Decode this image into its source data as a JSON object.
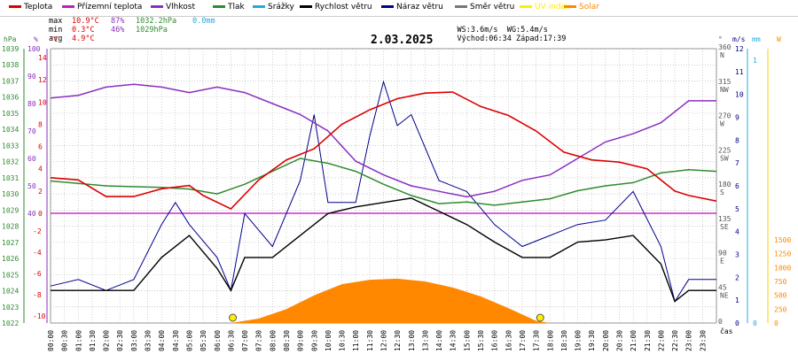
{
  "legend": [
    {
      "label": "Teplota",
      "color": "#dd0000"
    },
    {
      "label": "Přízemní teplota",
      "color": "#bb22bb"
    },
    {
      "label": "Vlhkost",
      "color": "#8a2ebf"
    },
    {
      "label": "Tlak",
      "color": "#2e8b2e"
    },
    {
      "label": "Srážky",
      "color": "#22aadd"
    },
    {
      "label": "Rychlost větru",
      "color": "#000000"
    },
    {
      "label": "Náraz větru",
      "color": "#00008b"
    },
    {
      "label": "Směr větru",
      "color": "#777777"
    },
    {
      "label": "UV index",
      "color": "#ffee00"
    },
    {
      "label": "Solar",
      "color": "#ff8800"
    }
  ],
  "stats": {
    "rows": [
      {
        "label": "max",
        "temp": "10.9°C",
        "hum": "87%",
        "press": "1032.2hPa",
        "rain": "0.0mm"
      },
      {
        "label": "min",
        "temp": "0.3°C",
        "hum": "46%",
        "press": "1029hPa",
        "rain": ""
      },
      {
        "label": "avg",
        "temp": "4.9°C",
        "hum": "",
        "press": "",
        "rain": ""
      }
    ],
    "ws": "WS:3.6m/s",
    "wg": "WG:5.4m/s",
    "sunrise": "Východ:06:34",
    "sunset": "Západ:17:39"
  },
  "title": "2.03.2025",
  "axes": {
    "left_units": [
      "hPa",
      "%",
      "°C"
    ],
    "right_units": [
      "°",
      "m/s",
      "mm",
      "W"
    ],
    "hpa_ticks": [
      "1039",
      "1038",
      "1037",
      "1036",
      "1035",
      "1034",
      "1033",
      "1032",
      "1031",
      "1030",
      "1029",
      "1028",
      "1027",
      "1026",
      "1025",
      "1024",
      "1023",
      "1022"
    ],
    "pct_ticks": [
      "100",
      "90",
      "80",
      "70",
      "60",
      "50",
      "40"
    ],
    "c_ticks_top": [
      "14",
      "12",
      "10",
      "8",
      "6",
      "4",
      "2",
      "0"
    ],
    "c_ticks_bottom": [
      "-2",
      "-4",
      "-6",
      "-8",
      "-10"
    ],
    "deg_ticks": [
      {
        "deg": "360",
        "dir": "N"
      },
      {
        "deg": "315",
        "dir": "NW"
      },
      {
        "deg": "270",
        "dir": "W"
      },
      {
        "deg": "225",
        "dir": "SW"
      },
      {
        "deg": "180",
        "dir": "S"
      },
      {
        "deg": "135",
        "dir": "SE"
      },
      {
        "deg": "90",
        "dir": "E"
      },
      {
        "deg": "45",
        "dir": "NE"
      },
      {
        "deg": "0",
        "dir": ""
      }
    ],
    "ms_ticks": [
      "12",
      "11",
      "10",
      "9",
      "8",
      "7",
      "6",
      "5",
      "4",
      "3",
      "2",
      "1",
      "0"
    ],
    "mm_ticks": [
      "1",
      "0"
    ],
    "w_ticks": [
      "1500",
      "1250",
      "1000",
      "750",
      "500",
      "250",
      "0"
    ],
    "x_ticks": [
      "00:00",
      "00:30",
      "01:00",
      "01:30",
      "02:00",
      "02:30",
      "03:00",
      "03:30",
      "04:00",
      "04:30",
      "05:00",
      "05:30",
      "06:00",
      "06:30",
      "07:00",
      "07:30",
      "08:00",
      "08:30",
      "09:00",
      "09:30",
      "10:00",
      "10:30",
      "11:00",
      "11:30",
      "12:00",
      "12:30",
      "13:00",
      "13:30",
      "14:00",
      "14:30",
      "15:00",
      "15:30",
      "16:00",
      "16:30",
      "17:00",
      "17:30",
      "18:00",
      "18:30",
      "19:00",
      "19:30",
      "20:00",
      "20:30",
      "21:00",
      "21:30",
      "22:00",
      "22:30",
      "23:00",
      "23:30"
    ],
    "x_unit": "čas"
  },
  "chart_data": {
    "type": "line",
    "title": "2.03.2025",
    "x_range_hours": [
      0,
      24
    ],
    "series": [
      {
        "name": "Teplota",
        "unit": "°C",
        "points": [
          [
            0,
            3.2
          ],
          [
            1,
            3
          ],
          [
            2,
            1.5
          ],
          [
            3,
            1.5
          ],
          [
            4,
            2.2
          ],
          [
            5,
            2.5
          ],
          [
            5.5,
            1.6
          ],
          [
            6.5,
            0.4
          ],
          [
            7.5,
            3
          ],
          [
            8.5,
            4.8
          ],
          [
            9.5,
            5.8
          ],
          [
            10.5,
            8
          ],
          [
            11.5,
            9.3
          ],
          [
            12.5,
            10.3
          ],
          [
            13.5,
            10.8
          ],
          [
            14.5,
            10.9
          ],
          [
            15.5,
            9.6
          ],
          [
            16.5,
            8.8
          ],
          [
            17.5,
            7.4
          ],
          [
            18.5,
            5.5
          ],
          [
            19.5,
            4.8
          ],
          [
            20.5,
            4.6
          ],
          [
            21.5,
            4
          ],
          [
            22.5,
            2
          ],
          [
            23,
            1.6
          ],
          [
            24,
            1.1
          ]
        ]
      },
      {
        "name": "Vlhkost",
        "unit": "%",
        "points": [
          [
            0,
            82
          ],
          [
            1,
            83
          ],
          [
            2,
            86
          ],
          [
            3,
            87
          ],
          [
            4,
            86
          ],
          [
            5,
            84
          ],
          [
            6,
            86
          ],
          [
            7,
            84
          ],
          [
            8,
            80
          ],
          [
            9,
            76
          ],
          [
            10,
            70
          ],
          [
            11,
            59
          ],
          [
            12,
            54
          ],
          [
            13,
            50
          ],
          [
            14,
            48
          ],
          [
            15,
            46
          ],
          [
            16,
            48
          ],
          [
            17,
            52
          ],
          [
            18,
            54
          ],
          [
            19,
            60
          ],
          [
            20,
            66
          ],
          [
            21,
            69
          ],
          [
            22,
            73
          ],
          [
            23,
            81
          ],
          [
            24,
            81
          ]
        ]
      },
      {
        "name": "Tlak",
        "unit": "hPa",
        "points": [
          [
            0,
            1030.8
          ],
          [
            2,
            1030.5
          ],
          [
            4,
            1030.4
          ],
          [
            5,
            1030.3
          ],
          [
            6,
            1030
          ],
          [
            7,
            1030.6
          ],
          [
            8,
            1031.4
          ],
          [
            9,
            1032.2
          ],
          [
            10,
            1031.9
          ],
          [
            11,
            1031.4
          ],
          [
            12,
            1030.6
          ],
          [
            13,
            1029.9
          ],
          [
            14,
            1029.4
          ],
          [
            15,
            1029.5
          ],
          [
            16,
            1029.3
          ],
          [
            17,
            1029.5
          ],
          [
            18,
            1029.7
          ],
          [
            19,
            1030.2
          ],
          [
            20,
            1030.5
          ],
          [
            21,
            1030.7
          ],
          [
            22,
            1031.3
          ],
          [
            23,
            1031.5
          ],
          [
            24,
            1031.4
          ]
        ]
      },
      {
        "name": "Rychlost větru",
        "unit": "m/s",
        "points": [
          [
            0,
            1
          ],
          [
            1,
            1
          ],
          [
            2,
            1
          ],
          [
            3,
            1
          ],
          [
            4,
            2.5
          ],
          [
            5,
            3.5
          ],
          [
            6,
            2
          ],
          [
            6.5,
            1
          ],
          [
            7,
            2.5
          ],
          [
            8,
            2.5
          ],
          [
            9,
            3.5
          ],
          [
            10,
            4.5
          ],
          [
            11,
            4.8
          ],
          [
            12,
            5
          ],
          [
            13,
            5.2
          ],
          [
            14,
            4.6
          ],
          [
            15,
            4
          ],
          [
            16,
            3.2
          ],
          [
            17,
            2.5
          ],
          [
            18,
            2.5
          ],
          [
            19,
            3.2
          ],
          [
            20,
            3.3
          ],
          [
            21,
            3.5
          ],
          [
            22,
            2.2
          ],
          [
            22.5,
            0.5
          ],
          [
            23,
            1
          ],
          [
            24,
            1
          ]
        ]
      },
      {
        "name": "Náraz větru",
        "unit": "m/s",
        "points": [
          [
            0,
            1.2
          ],
          [
            1,
            1.5
          ],
          [
            2,
            1
          ],
          [
            3,
            1.5
          ],
          [
            4,
            4
          ],
          [
            4.5,
            5
          ],
          [
            5,
            4
          ],
          [
            6,
            2.5
          ],
          [
            6.5,
            1
          ],
          [
            7,
            4.5
          ],
          [
            8,
            3
          ],
          [
            9,
            6
          ],
          [
            9.5,
            9
          ],
          [
            10,
            5
          ],
          [
            11,
            5
          ],
          [
            11.5,
            8
          ],
          [
            12,
            10.5
          ],
          [
            12.5,
            8.5
          ],
          [
            13,
            9
          ],
          [
            14,
            6
          ],
          [
            15,
            5.5
          ],
          [
            16,
            4
          ],
          [
            17,
            3
          ],
          [
            18,
            3.5
          ],
          [
            19,
            4
          ],
          [
            20,
            4.2
          ],
          [
            21,
            5.5
          ],
          [
            22,
            3
          ],
          [
            22.5,
            0.5
          ],
          [
            23,
            1.5
          ],
          [
            24,
            1.5
          ]
        ]
      },
      {
        "name": "Solar",
        "unit": "W",
        "points": [
          [
            6.5,
            0
          ],
          [
            7.5,
            80
          ],
          [
            8.5,
            250
          ],
          [
            9.5,
            500
          ],
          [
            10.5,
            700
          ],
          [
            11.5,
            780
          ],
          [
            12.5,
            800
          ],
          [
            13.5,
            750
          ],
          [
            14.5,
            640
          ],
          [
            15.5,
            480
          ],
          [
            16.5,
            270
          ],
          [
            17.5,
            40
          ],
          [
            18,
            0
          ]
        ]
      }
    ],
    "ylabel_left": "°C",
    "ylabel_right": "m/s"
  }
}
